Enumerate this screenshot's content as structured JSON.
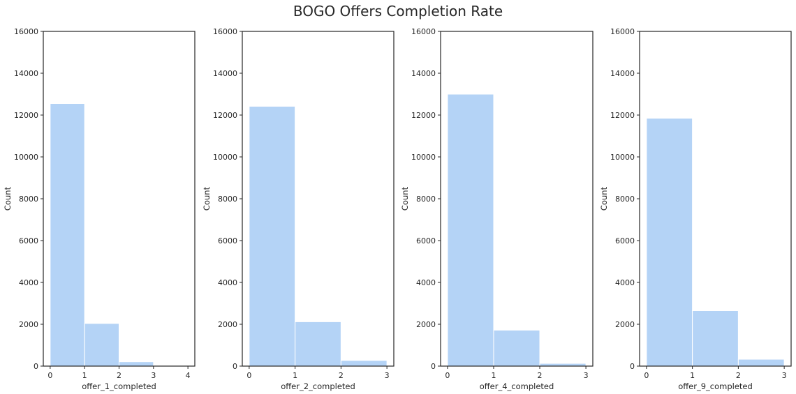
{
  "figure": {
    "title": "BOGO Offers Completion Rate"
  },
  "colors": {
    "bar": "#b4d3f6",
    "frame": "#262626",
    "background": "#ffffff"
  },
  "chart_data": [
    {
      "type": "bar",
      "xlabel": "offer_1_completed",
      "ylabel": "Count",
      "bins": [
        [
          0,
          1
        ],
        [
          1,
          2
        ],
        [
          2,
          3
        ]
      ],
      "values": [
        12550,
        2040,
        210
      ],
      "xlim": [
        -0.2,
        4.2
      ],
      "ylim": [
        0,
        16000
      ],
      "xticks": [
        0,
        1,
        2,
        3,
        4
      ],
      "yticks": [
        0,
        2000,
        4000,
        6000,
        8000,
        10000,
        12000,
        14000,
        16000
      ],
      "grid": false
    },
    {
      "type": "bar",
      "xlabel": "offer_2_completed",
      "ylabel": "Count",
      "bins": [
        [
          0,
          1
        ],
        [
          1,
          2
        ],
        [
          2,
          3
        ]
      ],
      "values": [
        12420,
        2120,
        270
      ],
      "xlim": [
        -0.15,
        3.15
      ],
      "ylim": [
        0,
        16000
      ],
      "xticks": [
        0,
        1,
        2,
        3
      ],
      "yticks": [
        0,
        2000,
        4000,
        6000,
        8000,
        10000,
        12000,
        14000,
        16000
      ],
      "grid": false
    },
    {
      "type": "bar",
      "xlabel": "offer_4_completed",
      "ylabel": "Count",
      "bins": [
        [
          0,
          1
        ],
        [
          1,
          2
        ],
        [
          2,
          3
        ]
      ],
      "values": [
        13000,
        1720,
        130
      ],
      "xlim": [
        -0.15,
        3.15
      ],
      "ylim": [
        0,
        16000
      ],
      "xticks": [
        0,
        1,
        2,
        3
      ],
      "yticks": [
        0,
        2000,
        4000,
        6000,
        8000,
        10000,
        12000,
        14000,
        16000
      ],
      "grid": false
    },
    {
      "type": "bar",
      "xlabel": "offer_9_completed",
      "ylabel": "Count",
      "bins": [
        [
          0,
          1
        ],
        [
          1,
          2
        ],
        [
          2,
          3
        ]
      ],
      "values": [
        11850,
        2650,
        330
      ],
      "xlim": [
        -0.15,
        3.15
      ],
      "ylim": [
        0,
        16000
      ],
      "xticks": [
        0,
        1,
        2,
        3
      ],
      "yticks": [
        0,
        2000,
        4000,
        6000,
        8000,
        10000,
        12000,
        14000,
        16000
      ],
      "grid": false
    }
  ]
}
